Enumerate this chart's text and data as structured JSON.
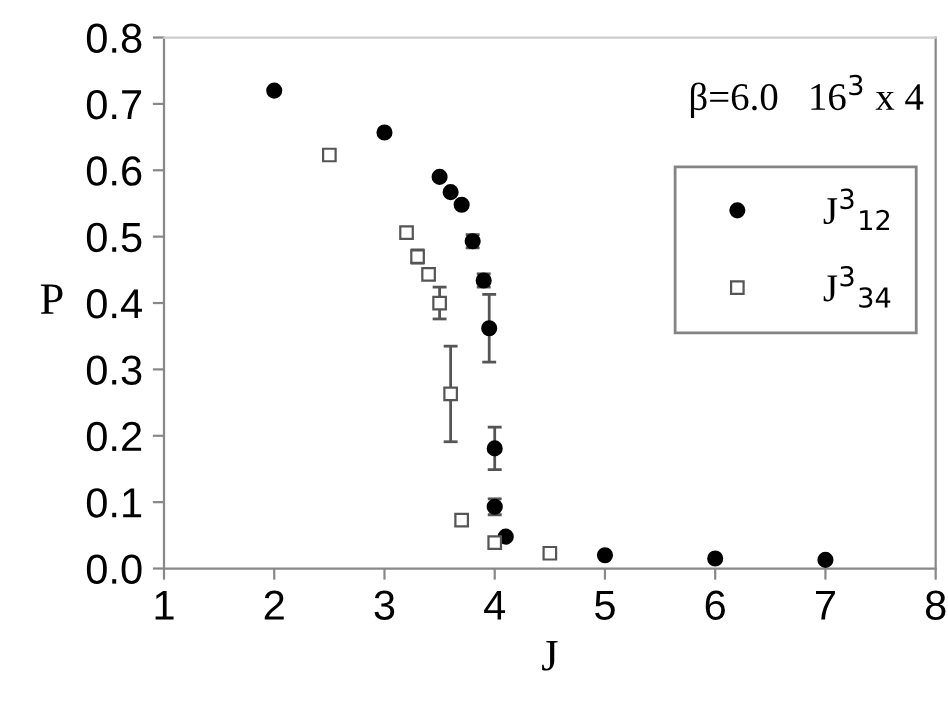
{
  "chart_data": {
    "type": "scatter",
    "xlabel": "J",
    "ylabel": "P",
    "annotations": [
      "β=6.0   16$^{3}$ x 4"
    ],
    "series": [
      {
        "name": "J$^{3}$$_{12}$",
        "color": "#000000",
        "marker": "circle",
        "x": [
          2,
          3,
          3.5,
          3.6,
          3.7,
          3.8,
          3.9,
          3.95,
          4,
          4,
          4.1,
          5,
          6,
          7
        ],
        "values": [
          0.72,
          0.657,
          0.59,
          0.567,
          0.548,
          0.493,
          0.434,
          0.362,
          0.181,
          0.093,
          0.048,
          0.02,
          0.015,
          0.013
        ],
        "errors": [
          null,
          null,
          null,
          null,
          null,
          0.01,
          0.01,
          0.051,
          0.032,
          0.012,
          null,
          null,
          null,
          null
        ]
      },
      {
        "name": "J$^{3}$$_{34}$",
        "color": "#ffffff",
        "marker": "square",
        "x": [
          2.5,
          3.2,
          3.3,
          3.4,
          3.5,
          3.6,
          3.7,
          4,
          4.5
        ],
        "values": [
          0.623,
          0.506,
          0.47,
          0.443,
          0.4,
          0.263,
          0.073,
          0.039,
          0.023
        ],
        "errors": [
          null,
          null,
          0.01,
          null,
          0.024,
          0.072,
          0.008,
          null,
          null
        ]
      }
    ],
    "xlim": [
      1,
      8
    ],
    "xticks": [
      1,
      2,
      3,
      4,
      5,
      6,
      7,
      8
    ],
    "ylim": [
      0,
      0.8
    ],
    "yticks": [
      {
        "value": 0,
        "label": "0.0"
      },
      {
        "value": 0.1,
        "label": "0.1"
      },
      {
        "value": 0.2,
        "label": "0.2"
      },
      {
        "value": 0.3,
        "label": "0.3"
      },
      {
        "value": 0.4,
        "label": "0.4"
      },
      {
        "value": 0.5,
        "label": "0.5"
      },
      {
        "value": 0.6,
        "label": "0.6"
      },
      {
        "value": 0.7,
        "label": "0.7"
      },
      {
        "value": 0.8,
        "label": "0.8"
      }
    ],
    "grid": false,
    "legend": "right"
  }
}
